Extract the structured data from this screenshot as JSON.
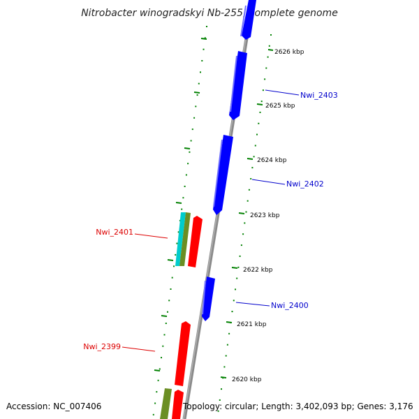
{
  "title": "Nitrobacter winogradskyi Nb-255, complete genome",
  "accession_text": "Accession: NC_007406",
  "topology_text": "Topology: circular; Length: 3,402,093 bp; Genes: 3,176",
  "colors": {
    "forward": "#0000ff",
    "reverse": "#ff0000",
    "backbone": "#808080",
    "ticks": "#008000",
    "cyan": "#00cccc",
    "olive": "#6b8e23"
  },
  "ticks": [
    {
      "label": "2626 kbp"
    },
    {
      "label": "2625 kbp"
    },
    {
      "label": "2624 kbp"
    },
    {
      "label": "2623 kbp"
    },
    {
      "label": "2622 kbp"
    },
    {
      "label": "2621 kbp"
    },
    {
      "label": "2620 kbp"
    }
  ],
  "gene_labels": [
    {
      "name": "Nwi_2403",
      "strand": "forward"
    },
    {
      "name": "Nwi_2402",
      "strand": "forward"
    },
    {
      "name": "Nwi_2401",
      "strand": "reverse"
    },
    {
      "name": "Nwi_2400",
      "strand": "forward"
    },
    {
      "name": "Nwi_2399",
      "strand": "reverse"
    }
  ]
}
